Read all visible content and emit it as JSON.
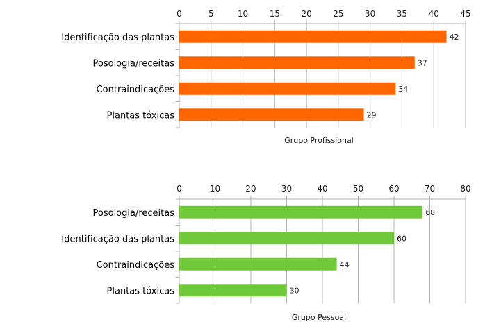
{
  "chart_data": [
    {
      "type": "bar",
      "orientation": "horizontal",
      "title": "",
      "xlabel": "Grupo Profissional",
      "ylabel": "",
      "xlim": [
        0,
        45
      ],
      "ticks": [
        0,
        5,
        10,
        15,
        20,
        25,
        30,
        35,
        40,
        45
      ],
      "tick_position": "top",
      "grid": true,
      "bar_color": "#ff6600",
      "categories": [
        "Identificação das plantas",
        "Posologia/receitas",
        "Contraindicações",
        "Plantas tóxicas"
      ],
      "values": [
        42,
        37,
        34,
        29
      ]
    },
    {
      "type": "bar",
      "orientation": "horizontal",
      "title": "",
      "xlabel": "Grupo Pessoal",
      "ylabel": "",
      "xlim": [
        0,
        80
      ],
      "ticks": [
        0,
        10,
        20,
        30,
        40,
        50,
        60,
        70,
        80
      ],
      "tick_position": "top",
      "grid": true,
      "bar_color": "#70c93b",
      "categories": [
        "Posologia/receitas",
        "Identificação das plantas",
        "Contraindicações",
        "Plantas tóxicas"
      ],
      "values": [
        68,
        60,
        44,
        30
      ]
    }
  ]
}
